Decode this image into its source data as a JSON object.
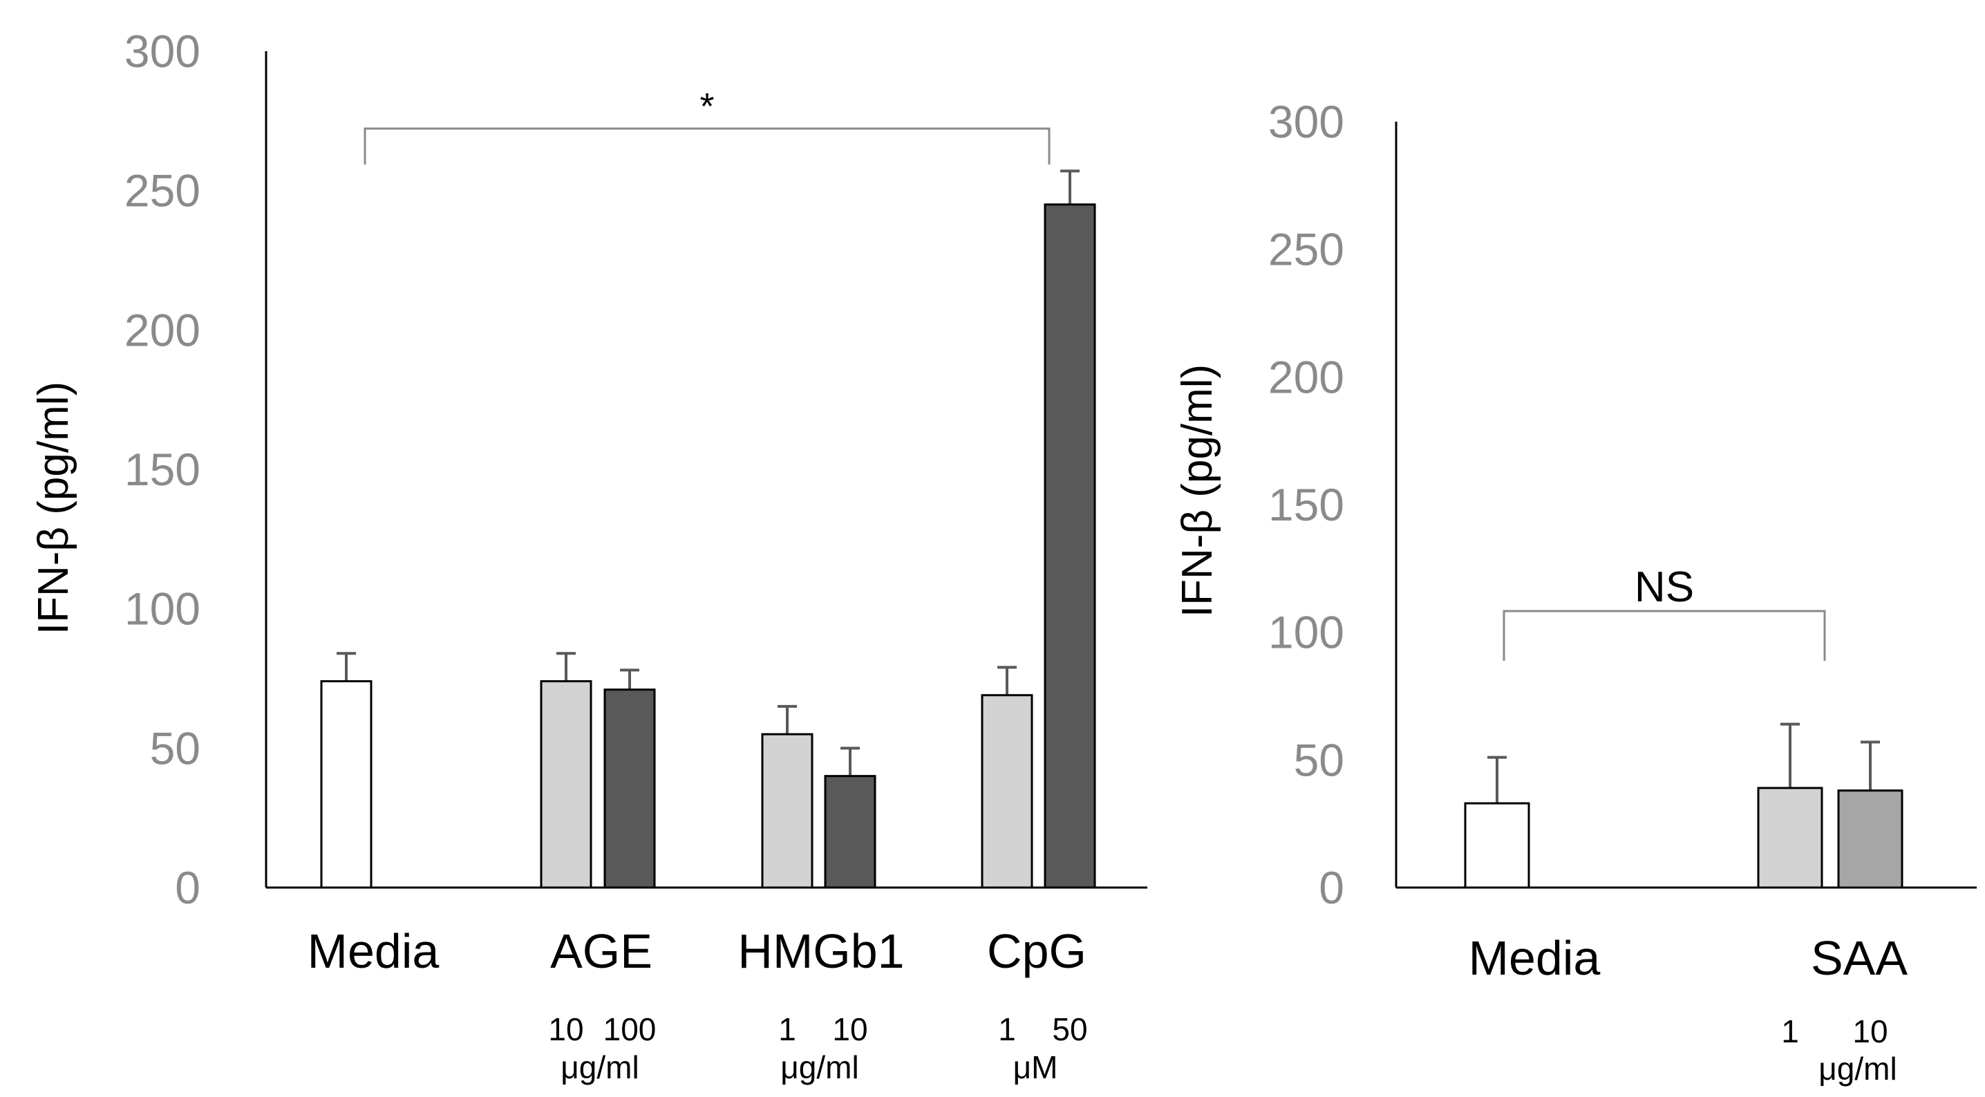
{
  "chart_data": [
    {
      "type": "bar",
      "ylabel": "IFN-β (pg/ml)",
      "ylim": [
        0,
        300
      ],
      "yticks": [
        "0",
        "50",
        "100",
        "150",
        "200",
        "250",
        "300"
      ],
      "categories": [
        "Media",
        "AGE",
        "HMGb1",
        "CpG"
      ],
      "sublabels": [
        {
          "doses": [],
          "unit": ""
        },
        {
          "doses": [
            "10",
            "100"
          ],
          "unit": "μg/ml"
        },
        {
          "doses": [
            "1",
            "10"
          ],
          "unit": "μg/ml"
        },
        {
          "doses": [
            "1",
            "50"
          ],
          "unit": "μM"
        }
      ],
      "bars": [
        {
          "category": "Media",
          "dose": "",
          "value": 74,
          "error": 10,
          "color": "#ffffff"
        },
        {
          "category": "AGE",
          "dose": "10",
          "value": 74,
          "error": 10,
          "color": "#d3d3d3"
        },
        {
          "category": "AGE",
          "dose": "100",
          "value": 71,
          "error": 7,
          "color": "#595959"
        },
        {
          "category": "HMGb1",
          "dose": "1",
          "value": 55,
          "error": 10,
          "color": "#d3d3d3"
        },
        {
          "category": "HMGb1",
          "dose": "10",
          "value": 40,
          "error": 10,
          "color": "#595959"
        },
        {
          "category": "CpG",
          "dose": "1",
          "value": 69,
          "error": 10,
          "color": "#d3d3d3"
        },
        {
          "category": "CpG",
          "dose": "50",
          "value": 245,
          "error": 12,
          "color": "#595959"
        }
      ],
      "significance": {
        "label": "*",
        "from": "Media",
        "to": "CpG 50",
        "level": 272
      }
    },
    {
      "type": "bar",
      "ylabel": "IFN-β (pg/ml)",
      "ylim": [
        0,
        300
      ],
      "yticks": [
        "0",
        "50",
        "100",
        "150",
        "200",
        "250",
        "300"
      ],
      "categories": [
        "Media",
        "SAA"
      ],
      "sublabels": [
        {
          "doses": [],
          "unit": ""
        },
        {
          "doses": [
            "1",
            "10"
          ],
          "unit": "μg/ml"
        }
      ],
      "bars": [
        {
          "category": "Media",
          "dose": "",
          "value": 33,
          "error": 18,
          "color": "#ffffff"
        },
        {
          "category": "SAA",
          "dose": "1",
          "value": 39,
          "error": 25,
          "color": "#d3d3d3"
        },
        {
          "category": "SAA",
          "dose": "10",
          "value": 38,
          "error": 19,
          "color": "#a6a6a6"
        }
      ],
      "significance": {
        "label": "NS",
        "from": "Media",
        "to": "SAA",
        "level": 108
      }
    }
  ]
}
